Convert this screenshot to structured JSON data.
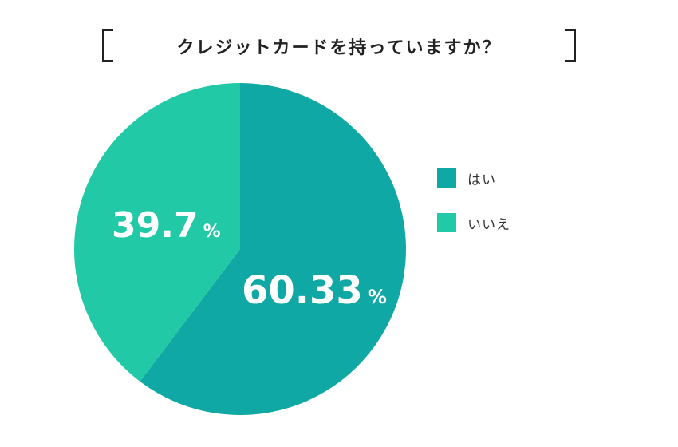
{
  "chart_data": {
    "type": "pie",
    "title": "クレジットカードを持っていますか？",
    "slices": [
      {
        "label": "はい",
        "value": 60.33,
        "display": "60.33",
        "unit": "%",
        "color": "#0fa8a4"
      },
      {
        "label": "いいえ",
        "value": 39.7,
        "display": "39.7",
        "unit": "%",
        "color": "#22c9a6"
      }
    ],
    "legend_position": "right"
  }
}
